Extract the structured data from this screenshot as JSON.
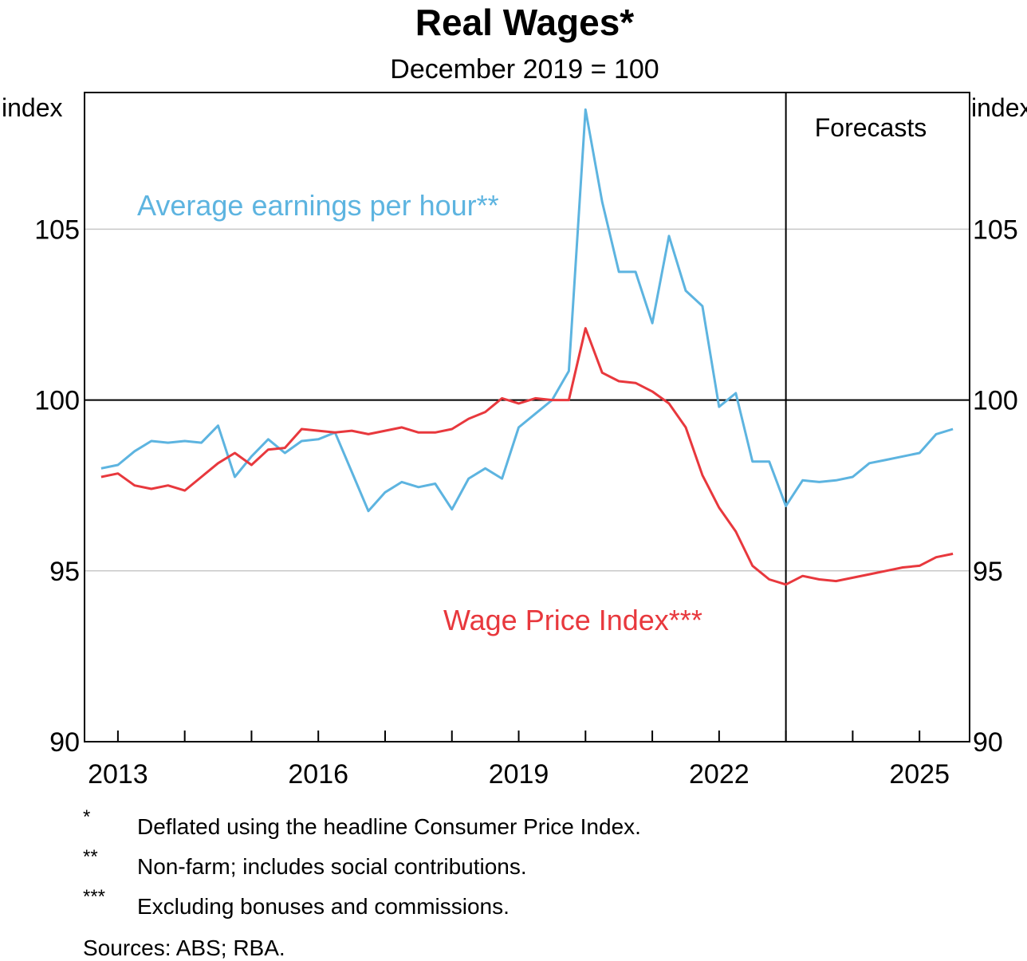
{
  "chart_data": {
    "type": "line",
    "title": "Real Wages*",
    "subtitle": "December 2019 = 100",
    "ylabel_left": "index",
    "ylabel_right": "index",
    "ylim": [
      90,
      109
    ],
    "yticks": [
      90,
      95,
      100,
      105
    ],
    "xlim": [
      2012.5,
      2025.75
    ],
    "x_tick_labels": [
      "2013",
      "2016",
      "2019",
      "2022",
      "2025"
    ],
    "reference_line": 100,
    "forecast_start": 2023.0,
    "forecast_label": "Forecasts",
    "grid": true,
    "colors": {
      "average_earnings": "#5db4e0",
      "wage_price_index": "#e8383d",
      "axis": "#000000",
      "grid": "#c8c8c8"
    },
    "series": [
      {
        "name": "Average earnings per hour**",
        "color": "#5db4e0",
        "points": [
          [
            2012.75,
            98.0
          ],
          [
            2013.0,
            98.1
          ],
          [
            2013.25,
            98.5
          ],
          [
            2013.5,
            98.8
          ],
          [
            2013.75,
            98.75
          ],
          [
            2014.0,
            98.8
          ],
          [
            2014.25,
            98.75
          ],
          [
            2014.5,
            99.25
          ],
          [
            2014.75,
            97.75
          ],
          [
            2015.0,
            98.35
          ],
          [
            2015.25,
            98.85
          ],
          [
            2015.5,
            98.45
          ],
          [
            2015.75,
            98.8
          ],
          [
            2016.0,
            98.85
          ],
          [
            2016.25,
            99.05
          ],
          [
            2016.5,
            97.9
          ],
          [
            2016.75,
            96.75
          ],
          [
            2017.0,
            97.3
          ],
          [
            2017.25,
            97.6
          ],
          [
            2017.5,
            97.45
          ],
          [
            2017.75,
            97.55
          ],
          [
            2018.0,
            96.8
          ],
          [
            2018.25,
            97.7
          ],
          [
            2018.5,
            98.0
          ],
          [
            2018.75,
            97.7
          ],
          [
            2019.0,
            99.2
          ],
          [
            2019.25,
            99.6
          ],
          [
            2019.5,
            100.0
          ],
          [
            2019.75,
            100.85
          ],
          [
            2020.0,
            108.5
          ],
          [
            2020.25,
            105.8
          ],
          [
            2020.5,
            103.75
          ],
          [
            2020.75,
            103.75
          ],
          [
            2021.0,
            102.25
          ],
          [
            2021.25,
            104.8
          ],
          [
            2021.5,
            103.2
          ],
          [
            2021.75,
            102.75
          ],
          [
            2022.0,
            99.8
          ],
          [
            2022.25,
            100.2
          ],
          [
            2022.5,
            98.2
          ],
          [
            2022.75,
            98.2
          ],
          [
            2023.0,
            96.9
          ],
          [
            2023.25,
            97.65
          ],
          [
            2023.5,
            97.6
          ],
          [
            2023.75,
            97.65
          ],
          [
            2024.0,
            97.75
          ],
          [
            2024.25,
            98.15
          ],
          [
            2024.5,
            98.25
          ],
          [
            2024.75,
            98.35
          ],
          [
            2025.0,
            98.45
          ],
          [
            2025.25,
            99.0
          ],
          [
            2025.5,
            99.15
          ]
        ]
      },
      {
        "name": "Wage Price Index***",
        "color": "#e8383d",
        "points": [
          [
            2012.75,
            97.75
          ],
          [
            2013.0,
            97.85
          ],
          [
            2013.25,
            97.5
          ],
          [
            2013.5,
            97.4
          ],
          [
            2013.75,
            97.5
          ],
          [
            2014.0,
            97.35
          ],
          [
            2014.25,
            97.75
          ],
          [
            2014.5,
            98.15
          ],
          [
            2014.75,
            98.45
          ],
          [
            2015.0,
            98.1
          ],
          [
            2015.25,
            98.55
          ],
          [
            2015.5,
            98.6
          ],
          [
            2015.75,
            99.15
          ],
          [
            2016.0,
            99.1
          ],
          [
            2016.25,
            99.05
          ],
          [
            2016.5,
            99.1
          ],
          [
            2016.75,
            99.0
          ],
          [
            2017.0,
            99.1
          ],
          [
            2017.25,
            99.2
          ],
          [
            2017.5,
            99.05
          ],
          [
            2017.75,
            99.05
          ],
          [
            2018.0,
            99.15
          ],
          [
            2018.25,
            99.45
          ],
          [
            2018.5,
            99.65
          ],
          [
            2018.75,
            100.05
          ],
          [
            2019.0,
            99.9
          ],
          [
            2019.25,
            100.05
          ],
          [
            2019.5,
            100.0
          ],
          [
            2019.75,
            100.0
          ],
          [
            2020.0,
            102.1
          ],
          [
            2020.25,
            100.8
          ],
          [
            2020.5,
            100.55
          ],
          [
            2020.75,
            100.5
          ],
          [
            2021.0,
            100.25
          ],
          [
            2021.25,
            99.9
          ],
          [
            2021.5,
            99.2
          ],
          [
            2021.75,
            97.8
          ],
          [
            2022.0,
            96.85
          ],
          [
            2022.25,
            96.15
          ],
          [
            2022.5,
            95.15
          ],
          [
            2022.75,
            94.75
          ],
          [
            2023.0,
            94.6
          ],
          [
            2023.25,
            94.85
          ],
          [
            2023.5,
            94.75
          ],
          [
            2023.75,
            94.7
          ],
          [
            2024.0,
            94.8
          ],
          [
            2024.25,
            94.9
          ],
          [
            2024.5,
            95.0
          ],
          [
            2024.75,
            95.1
          ],
          [
            2025.0,
            95.15
          ],
          [
            2025.25,
            95.4
          ],
          [
            2025.5,
            95.5
          ]
        ]
      }
    ]
  },
  "footnotes": [
    {
      "mark": "*",
      "text": "Deflated using the headline Consumer Price Index."
    },
    {
      "mark": "**",
      "text": "Non-farm; includes social contributions."
    },
    {
      "mark": "***",
      "text": "Excluding bonuses and commissions."
    }
  ],
  "sources": "Sources: ABS; RBA."
}
